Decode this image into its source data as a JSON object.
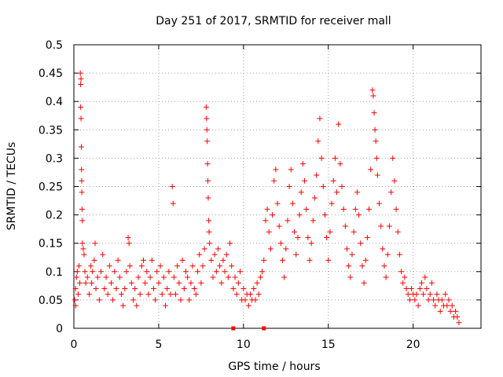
{
  "chart_data": {
    "type": "scatter",
    "title": "Day 251 of 2017, SRMTID for receiver mall",
    "xlabel": "GPS time / hours",
    "ylabel": "SRMTID / TECUs",
    "xlim": [
      0,
      24
    ],
    "ylim": [
      0,
      0.5
    ],
    "x_ticks": [
      0,
      5,
      10,
      15,
      20
    ],
    "x_tick_labels": [
      "0",
      "5",
      "10",
      "15",
      "20"
    ],
    "y_ticks": [
      0,
      0.05,
      0.1,
      0.15,
      0.2,
      0.25,
      0.3,
      0.35,
      0.4,
      0.45,
      0.5
    ],
    "y_tick_labels": [
      "0",
      "0.05",
      "0.1",
      "0.15",
      "0.2",
      "0.25",
      "0.3",
      "0.35",
      "0.4",
      "0.45",
      "0.5"
    ],
    "grid": true,
    "marker": "+",
    "color": "#ff0000",
    "series": [
      {
        "name": "SRMTID",
        "points": [
          [
            0.05,
            0.05
          ],
          [
            0.1,
            0.04
          ],
          [
            0.1,
            0.07
          ],
          [
            0.15,
            0.09
          ],
          [
            0.2,
            0.1
          ],
          [
            0.25,
            0.06
          ],
          [
            0.3,
            0.11
          ],
          [
            0.35,
            0.08
          ],
          [
            0.38,
            0.45
          ],
          [
            0.4,
            0.43
          ],
          [
            0.42,
            0.44
          ],
          [
            0.4,
            0.39
          ],
          [
            0.42,
            0.37
          ],
          [
            0.44,
            0.32
          ],
          [
            0.45,
            0.28
          ],
          [
            0.46,
            0.26
          ],
          [
            0.47,
            0.24
          ],
          [
            0.48,
            0.21
          ],
          [
            0.5,
            0.19
          ],
          [
            0.5,
            0.15
          ],
          [
            0.55,
            0.14
          ],
          [
            0.6,
            0.13
          ],
          [
            0.65,
            0.1
          ],
          [
            0.7,
            0.08
          ],
          [
            0.8,
            0.09
          ],
          [
            0.9,
            0.06
          ],
          [
            1.0,
            0.11
          ],
          [
            1.05,
            0.08
          ],
          [
            1.1,
            0.1
          ],
          [
            1.2,
            0.12
          ],
          [
            1.25,
            0.15
          ],
          [
            1.3,
            0.07
          ],
          [
            1.4,
            0.09
          ],
          [
            1.5,
            0.05
          ],
          [
            1.6,
            0.1
          ],
          [
            1.7,
            0.13
          ],
          [
            1.8,
            0.07
          ],
          [
            1.9,
            0.09
          ],
          [
            2.0,
            0.06
          ],
          [
            2.1,
            0.11
          ],
          [
            2.2,
            0.08
          ],
          [
            2.3,
            0.05
          ],
          [
            2.4,
            0.1
          ],
          [
            2.5,
            0.07
          ],
          [
            2.6,
            0.12
          ],
          [
            2.7,
            0.09
          ],
          [
            2.8,
            0.06
          ],
          [
            2.9,
            0.04
          ],
          [
            3.0,
            0.07
          ],
          [
            3.1,
            0.1
          ],
          [
            3.2,
            0.16
          ],
          [
            3.25,
            0.15
          ],
          [
            3.3,
            0.11
          ],
          [
            3.4,
            0.08
          ],
          [
            3.5,
            0.05
          ],
          [
            3.6,
            0.07
          ],
          [
            3.7,
            0.04
          ],
          [
            3.8,
            0.09
          ],
          [
            3.9,
            0.06
          ],
          [
            4.0,
            0.11
          ],
          [
            4.1,
            0.12
          ],
          [
            4.2,
            0.08
          ],
          [
            4.3,
            0.1
          ],
          [
            4.4,
            0.06
          ],
          [
            4.5,
            0.09
          ],
          [
            4.6,
            0.12
          ],
          [
            4.7,
            0.07
          ],
          [
            4.8,
            0.05
          ],
          [
            4.9,
            0.1
          ],
          [
            5.0,
            0.08
          ],
          [
            5.1,
            0.11
          ],
          [
            5.2,
            0.06
          ],
          [
            5.3,
            0.09
          ],
          [
            5.4,
            0.04
          ],
          [
            5.5,
            0.07
          ],
          [
            5.6,
            0.1
          ],
          [
            5.7,
            0.06
          ],
          [
            5.8,
            0.25
          ],
          [
            5.85,
            0.22
          ],
          [
            5.9,
            0.09
          ],
          [
            6.0,
            0.06
          ],
          [
            6.1,
            0.11
          ],
          [
            6.2,
            0.08
          ],
          [
            6.3,
            0.05
          ],
          [
            6.4,
            0.12
          ],
          [
            6.5,
            0.07
          ],
          [
            6.6,
            0.1
          ],
          [
            6.7,
            0.09
          ],
          [
            6.8,
            0.05
          ],
          [
            6.9,
            0.08
          ],
          [
            7.0,
            0.11
          ],
          [
            7.1,
            0.07
          ],
          [
            7.2,
            0.06
          ],
          [
            7.3,
            0.1
          ],
          [
            7.4,
            0.13
          ],
          [
            7.5,
            0.08
          ],
          [
            7.6,
            0.11
          ],
          [
            7.7,
            0.14
          ],
          [
            7.8,
            0.39
          ],
          [
            7.82,
            0.37
          ],
          [
            7.84,
            0.35
          ],
          [
            7.86,
            0.33
          ],
          [
            7.88,
            0.29
          ],
          [
            7.9,
            0.26
          ],
          [
            7.92,
            0.23
          ],
          [
            7.95,
            0.19
          ],
          [
            7.97,
            0.17
          ],
          [
            8.0,
            0.15
          ],
          [
            8.1,
            0.12
          ],
          [
            8.2,
            0.09
          ],
          [
            8.3,
            0.13
          ],
          [
            8.4,
            0.1
          ],
          [
            8.5,
            0.14
          ],
          [
            8.6,
            0.11
          ],
          [
            8.7,
            0.08
          ],
          [
            8.8,
            0.12
          ],
          [
            8.9,
            0.1
          ],
          [
            9.0,
            0.13
          ],
          [
            9.1,
            0.09
          ],
          [
            9.2,
            0.15
          ],
          [
            9.3,
            0.11
          ],
          [
            9.4,
            0.07
          ],
          [
            9.5,
            0.09
          ],
          [
            9.6,
            0.06
          ],
          [
            9.7,
            0.08
          ],
          [
            9.8,
            0.1
          ],
          [
            9.9,
            0.05
          ],
          [
            10.0,
            0.07
          ],
          [
            10.1,
            0.05
          ],
          [
            10.2,
            0.06
          ],
          [
            10.3,
            0.04
          ],
          [
            10.4,
            0.06
          ],
          [
            10.5,
            0.05
          ],
          [
            10.6,
            0.07
          ],
          [
            10.7,
            0.05
          ],
          [
            10.8,
            0.08
          ],
          [
            10.9,
            0.06
          ],
          [
            11.0,
            0.09
          ],
          [
            11.1,
            0.1
          ],
          [
            11.2,
            0.12
          ],
          [
            11.3,
            0.19
          ],
          [
            11.4,
            0.21
          ],
          [
            11.5,
            0.17
          ],
          [
            11.6,
            0.14
          ],
          [
            11.7,
            0.2
          ],
          [
            11.8,
            0.26
          ],
          [
            11.9,
            0.28
          ],
          [
            12.0,
            0.22
          ],
          [
            12.1,
            0.18
          ],
          [
            12.2,
            0.15
          ],
          [
            12.3,
            0.12
          ],
          [
            12.4,
            0.09
          ],
          [
            12.5,
            0.14
          ],
          [
            12.6,
            0.19
          ],
          [
            12.7,
            0.25
          ],
          [
            12.8,
            0.28
          ],
          [
            12.9,
            0.22
          ],
          [
            13.0,
            0.17
          ],
          [
            13.1,
            0.13
          ],
          [
            13.2,
            0.16
          ],
          [
            13.3,
            0.2
          ],
          [
            13.4,
            0.24
          ],
          [
            13.5,
            0.29
          ],
          [
            13.6,
            0.26
          ],
          [
            13.7,
            0.21
          ],
          [
            13.8,
            0.16
          ],
          [
            13.9,
            0.12
          ],
          [
            14.0,
            0.15
          ],
          [
            14.1,
            0.19
          ],
          [
            14.2,
            0.23
          ],
          [
            14.3,
            0.27
          ],
          [
            14.4,
            0.33
          ],
          [
            14.5,
            0.37
          ],
          [
            14.6,
            0.3
          ],
          [
            14.7,
            0.25
          ],
          [
            14.8,
            0.2
          ],
          [
            14.9,
            0.16
          ],
          [
            15.0,
            0.12
          ],
          [
            15.1,
            0.17
          ],
          [
            15.2,
            0.22
          ],
          [
            15.3,
            0.26
          ],
          [
            15.4,
            0.3
          ],
          [
            15.5,
            0.24
          ],
          [
            15.6,
            0.36
          ],
          [
            15.7,
            0.29
          ],
          [
            15.8,
            0.25
          ],
          [
            15.9,
            0.21
          ],
          [
            16.0,
            0.18
          ],
          [
            16.1,
            0.14
          ],
          [
            16.2,
            0.11
          ],
          [
            16.3,
            0.09
          ],
          [
            16.4,
            0.13
          ],
          [
            16.5,
            0.17
          ],
          [
            16.6,
            0.21
          ],
          [
            16.7,
            0.24
          ],
          [
            16.8,
            0.2
          ],
          [
            16.9,
            0.15
          ],
          [
            17.0,
            0.11
          ],
          [
            17.1,
            0.08
          ],
          [
            17.2,
            0.12
          ],
          [
            17.3,
            0.16
          ],
          [
            17.4,
            0.21
          ],
          [
            17.5,
            0.28
          ],
          [
            17.6,
            0.42
          ],
          [
            17.65,
            0.41
          ],
          [
            17.7,
            0.38
          ],
          [
            17.75,
            0.35
          ],
          [
            17.8,
            0.33
          ],
          [
            17.85,
            0.3
          ],
          [
            17.9,
            0.27
          ],
          [
            18.0,
            0.22
          ],
          [
            18.1,
            0.18
          ],
          [
            18.2,
            0.14
          ],
          [
            18.3,
            0.11
          ],
          [
            18.4,
            0.09
          ],
          [
            18.5,
            0.13
          ],
          [
            18.6,
            0.18
          ],
          [
            18.7,
            0.24
          ],
          [
            18.8,
            0.3
          ],
          [
            18.9,
            0.26
          ],
          [
            19.0,
            0.21
          ],
          [
            19.1,
            0.17
          ],
          [
            19.2,
            0.13
          ],
          [
            19.3,
            0.1
          ],
          [
            19.4,
            0.08
          ],
          [
            19.5,
            0.09
          ],
          [
            19.6,
            0.07
          ],
          [
            19.7,
            0.06
          ],
          [
            19.8,
            0.05
          ],
          [
            19.9,
            0.07
          ],
          [
            20.0,
            0.06
          ],
          [
            20.1,
            0.05
          ],
          [
            20.2,
            0.06
          ],
          [
            20.3,
            0.04
          ],
          [
            20.4,
            0.07
          ],
          [
            20.5,
            0.08
          ],
          [
            20.6,
            0.06
          ],
          [
            20.7,
            0.09
          ],
          [
            20.8,
            0.07
          ],
          [
            20.9,
            0.05
          ],
          [
            21.0,
            0.06
          ],
          [
            21.1,
            0.08
          ],
          [
            21.2,
            0.05
          ],
          [
            21.3,
            0.04
          ],
          [
            21.4,
            0.06
          ],
          [
            21.5,
            0.05
          ],
          [
            21.6,
            0.03
          ],
          [
            21.7,
            0.05
          ],
          [
            21.8,
            0.04
          ],
          [
            21.9,
            0.06
          ],
          [
            22.0,
            0.04
          ],
          [
            22.1,
            0.05
          ],
          [
            22.2,
            0.03
          ],
          [
            22.3,
            0.04
          ],
          [
            22.4,
            0.02
          ],
          [
            22.5,
            0.03
          ],
          [
            22.6,
            0.02
          ],
          [
            22.7,
            0.01
          ]
        ]
      }
    ],
    "zero_markers_x": [
      9.4,
      11.2
    ]
  }
}
